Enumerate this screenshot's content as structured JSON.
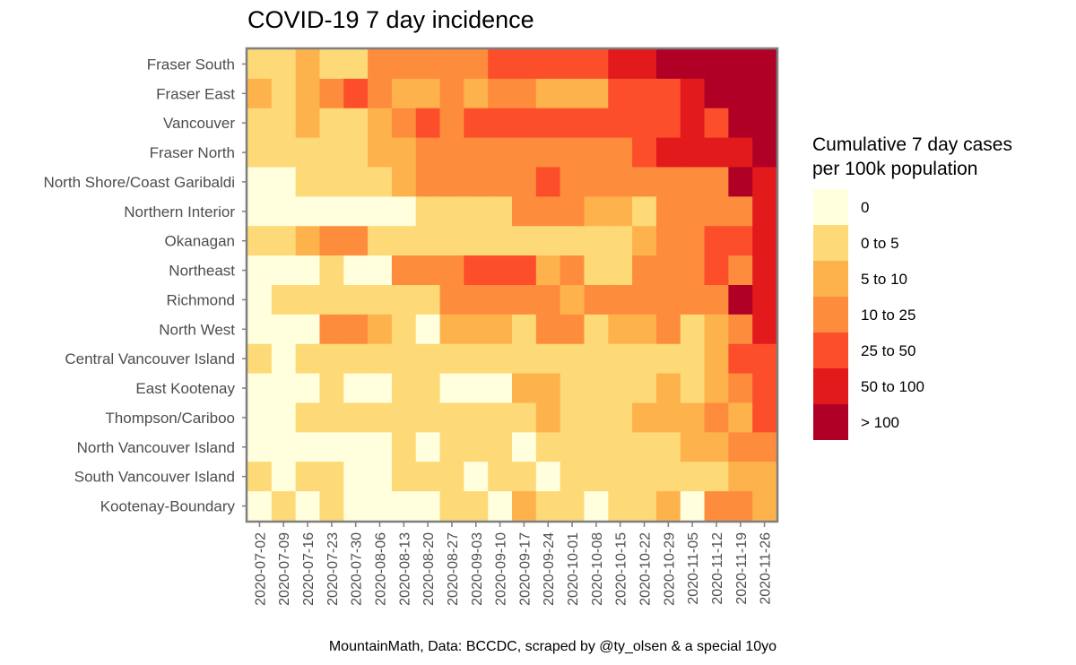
{
  "chart_data": {
    "type": "heatmap",
    "title": "COVID-19 7 day incidence",
    "caption": "MountainMath, Data: BCCDC, scraped by @ty_olsen & a special 10yo",
    "xlabel": "",
    "ylabel": "",
    "x": [
      "2020-07-02",
      "2020-07-09",
      "2020-07-16",
      "2020-07-23",
      "2020-07-30",
      "2020-08-06",
      "2020-08-13",
      "2020-08-20",
      "2020-08-27",
      "2020-09-03",
      "2020-09-10",
      "2020-09-17",
      "2020-09-24",
      "2020-10-01",
      "2020-10-08",
      "2020-10-15",
      "2020-10-22",
      "2020-10-29",
      "2020-11-05",
      "2020-11-12",
      "2020-11-19",
      "2020-11-26"
    ],
    "y": [
      "Fraser South",
      "Fraser East",
      "Vancouver",
      "Fraser North",
      "North Shore/Coast Garibaldi",
      "Northern Interior",
      "Okanagan",
      "Northeast",
      "Richmond",
      "North West",
      "Central Vancouver Island",
      "East Kootenay",
      "Thompson/Cariboo",
      "North Vancouver Island",
      "South Vancouver Island",
      "Kootenay-Boundary"
    ],
    "legend": {
      "title_line1": "Cumulative 7 day cases",
      "title_line2": "per 100k population",
      "categories": [
        "0",
        "0 to 5",
        "5 to 10",
        "10 to 25",
        "25 to 50",
        "50 to 100",
        "> 100"
      ],
      "colors": [
        "#ffffdd",
        "#fed977",
        "#feb24c",
        "#fd8d3c",
        "#fc4e2a",
        "#e31a1c",
        "#b10026"
      ]
    },
    "values": [
      [
        1,
        1,
        2,
        1,
        1,
        3,
        3,
        3,
        3,
        3,
        4,
        4,
        4,
        4,
        4,
        5,
        5,
        6,
        6,
        6,
        6,
        6
      ],
      [
        2,
        1,
        2,
        3,
        4,
        3,
        2,
        2,
        3,
        2,
        3,
        3,
        2,
        2,
        2,
        4,
        4,
        4,
        5,
        6,
        6,
        6
      ],
      [
        1,
        1,
        2,
        1,
        1,
        2,
        3,
        4,
        3,
        4,
        4,
        4,
        4,
        4,
        4,
        4,
        4,
        4,
        5,
        4,
        6,
        6
      ],
      [
        1,
        1,
        1,
        1,
        1,
        2,
        2,
        3,
        3,
        3,
        3,
        3,
        3,
        3,
        3,
        3,
        4,
        5,
        5,
        5,
        5,
        6
      ],
      [
        0,
        0,
        1,
        1,
        1,
        1,
        2,
        3,
        3,
        3,
        3,
        3,
        4,
        3,
        3,
        3,
        3,
        3,
        3,
        3,
        6,
        5
      ],
      [
        0,
        0,
        0,
        0,
        0,
        0,
        0,
        1,
        1,
        1,
        1,
        3,
        3,
        3,
        2,
        2,
        1,
        3,
        3,
        3,
        3,
        5
      ],
      [
        1,
        1,
        2,
        3,
        3,
        1,
        1,
        1,
        1,
        1,
        1,
        1,
        1,
        1,
        1,
        1,
        2,
        3,
        3,
        4,
        4,
        5
      ],
      [
        0,
        0,
        0,
        1,
        0,
        0,
        3,
        3,
        3,
        4,
        4,
        4,
        2,
        3,
        1,
        1,
        3,
        3,
        3,
        4,
        3,
        5
      ],
      [
        0,
        1,
        1,
        1,
        1,
        1,
        1,
        1,
        3,
        3,
        3,
        3,
        3,
        2,
        3,
        3,
        3,
        3,
        3,
        3,
        6,
        5
      ],
      [
        0,
        0,
        0,
        3,
        3,
        2,
        1,
        0,
        2,
        2,
        2,
        1,
        3,
        3,
        1,
        2,
        2,
        3,
        1,
        2,
        3,
        5
      ],
      [
        1,
        0,
        1,
        1,
        1,
        1,
        1,
        1,
        1,
        1,
        1,
        1,
        1,
        1,
        1,
        1,
        1,
        1,
        1,
        2,
        4,
        4
      ],
      [
        0,
        0,
        0,
        1,
        0,
        0,
        1,
        1,
        0,
        0,
        0,
        2,
        2,
        1,
        1,
        1,
        1,
        2,
        1,
        2,
        3,
        4
      ],
      [
        0,
        0,
        1,
        1,
        1,
        1,
        1,
        1,
        1,
        1,
        1,
        1,
        2,
        1,
        1,
        1,
        2,
        2,
        2,
        3,
        2,
        4
      ],
      [
        0,
        0,
        0,
        0,
        0,
        0,
        1,
        0,
        1,
        1,
        1,
        0,
        1,
        1,
        1,
        1,
        1,
        1,
        2,
        2,
        3,
        3
      ],
      [
        1,
        0,
        1,
        1,
        0,
        0,
        1,
        1,
        1,
        0,
        1,
        1,
        0,
        1,
        1,
        1,
        1,
        1,
        1,
        1,
        2,
        2
      ],
      [
        0,
        1,
        0,
        1,
        0,
        0,
        0,
        0,
        1,
        1,
        0,
        2,
        1,
        1,
        0,
        1,
        1,
        2,
        0,
        3,
        3,
        2
      ]
    ]
  }
}
